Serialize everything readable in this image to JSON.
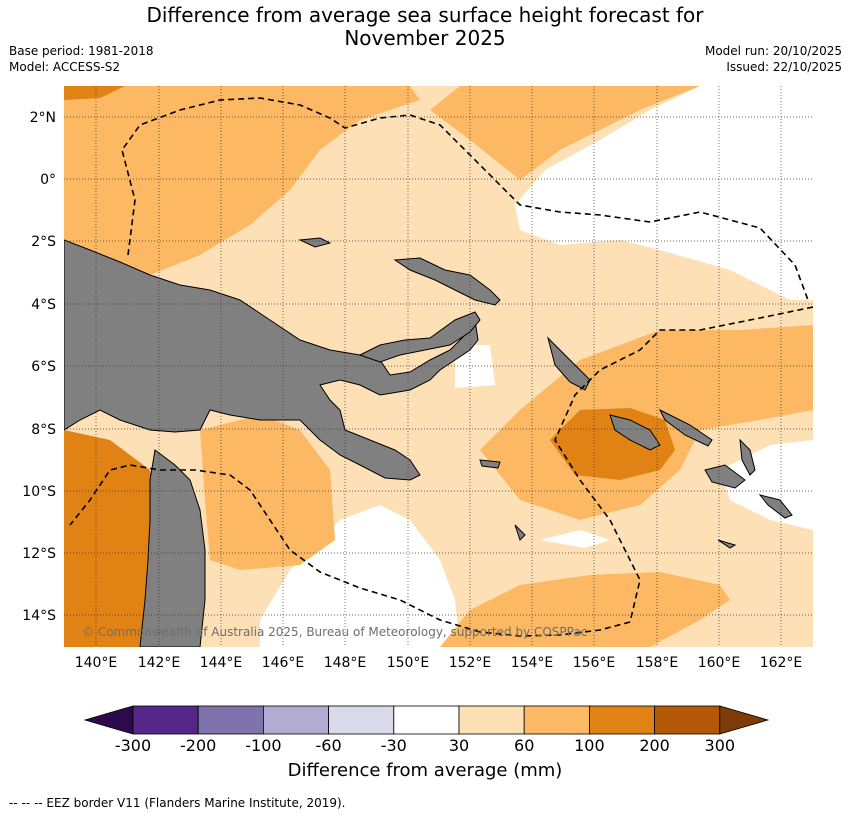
{
  "title_line1": "Difference from average sea surface height forecast for",
  "title_line2": "November 2025",
  "base_period": "Base period: 1981-2018",
  "model": "Model: ACCESS-S2",
  "model_run": "Model run: 20/10/2025",
  "issued": "Issued: 22/10/2025",
  "lat_labels": [
    "2°N",
    "0°",
    "2°S",
    "4°S",
    "6°S",
    "8°S",
    "10°S",
    "12°S",
    "14°S"
  ],
  "lon_labels": [
    "140°E",
    "142°E",
    "144°E",
    "146°E",
    "148°E",
    "150°E",
    "152°E",
    "154°E",
    "156°E",
    "158°E",
    "160°E",
    "162°E"
  ],
  "copyright": "© Commonwealth of Australia 2025, Bureau of Meteorology, supported by COSPPac",
  "colorbar": {
    "ticks": [
      "-300",
      "-200",
      "-100",
      "-60",
      "-30",
      "30",
      "60",
      "100",
      "200",
      "300"
    ],
    "colors": [
      "#2d0a4e",
      "#542788",
      "#8073ac",
      "#b2abd2",
      "#d8daeb",
      "#ffffff",
      "#fee0b6",
      "#fdb863",
      "#e08214",
      "#b35806",
      "#7f3b08"
    ],
    "label": "Difference from average (mm)"
  },
  "footnote": "--  --  -- EEZ border V11 (Flanders Marine Institute, 2019)."
}
